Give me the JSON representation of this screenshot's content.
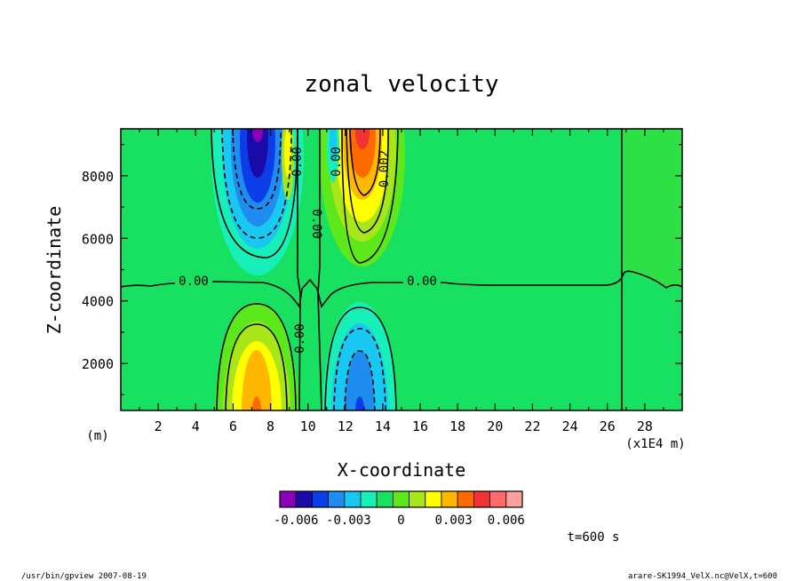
{
  "chart_data": {
    "type": "heatmap",
    "title": "zonal velocity",
    "xlabel": "X-coordinate",
    "ylabel": "Z-coordinate",
    "x_units_left": "(m)",
    "x_units_right": "(x1E4 m)",
    "xlim": [
      0,
      30
    ],
    "ylim": [
      500,
      9500
    ],
    "x_ticks": [
      2,
      4,
      6,
      8,
      10,
      12,
      14,
      16,
      18,
      20,
      22,
      24,
      26,
      28
    ],
    "y_ticks": [
      2000,
      4000,
      6000,
      8000
    ],
    "contour_labels": [
      "0.00",
      "0.00",
      "0.00",
      "0.00",
      "0.002",
      "0.00",
      "0.00"
    ],
    "colorbar": {
      "colors": [
        "#8a00b8",
        "#1a0aa8",
        "#0b3ee6",
        "#1f8df0",
        "#18c8f0",
        "#16f0b8",
        "#18e060",
        "#5ce81a",
        "#a8e61a",
        "#ffff00",
        "#ffb700",
        "#ff6a00",
        "#f03434",
        "#ff6a6a",
        "#ffa0a0"
      ],
      "tick_labels": [
        "-0.006",
        "-0.003",
        "0",
        "0.003",
        "0.006"
      ],
      "levels": [
        -0.006,
        -0.003,
        0,
        0.003,
        0.006
      ]
    },
    "annotation_time": "t=600 s"
  },
  "footer": {
    "left": "/usr/bin/gpview  2007-08-19",
    "right": "arare-SK1994_VelX.nc@VelX,t=600"
  }
}
